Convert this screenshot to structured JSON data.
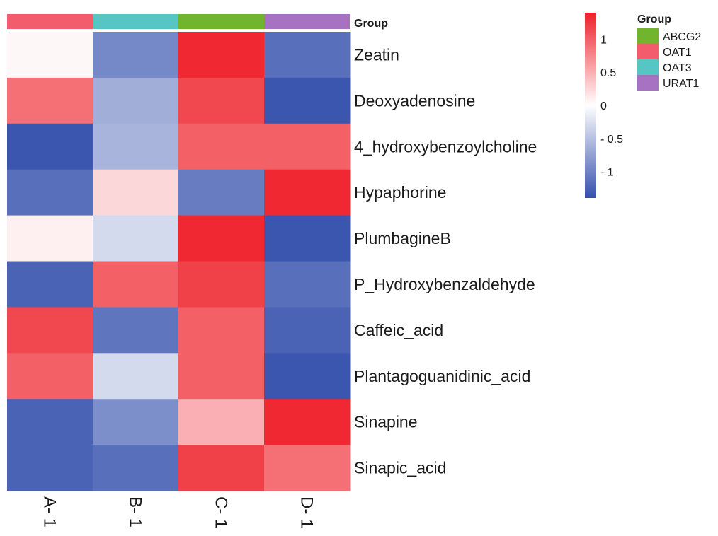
{
  "chart_data": {
    "type": "heatmap",
    "title": "",
    "xlabel": "",
    "ylabel": "",
    "columns": [
      "A- 1",
      "B- 1",
      "C- 1",
      "D- 1"
    ],
    "column_groups": [
      "OAT1",
      "OAT3",
      "ABCG2",
      "URAT1"
    ],
    "rows": [
      "Zeatin",
      "Deoxyadenosine",
      "4_hydroxybenzoylcholine",
      "Hypaphorine",
      "PlumbagineB",
      "P_Hydroxybenzaldehyde",
      "Caffeic_acid",
      "Plantagoguanidinic_acid",
      "Sinapine",
      "Sinapic_acid"
    ],
    "values": [
      [
        0.05,
        -0.95,
        1.35,
        -1.15
      ],
      [
        0.9,
        -0.65,
        1.15,
        -1.35
      ],
      [
        -1.35,
        -0.6,
        1.0,
        1.0
      ],
      [
        -1.15,
        0.25,
        -1.05,
        1.35
      ],
      [
        0.1,
        -0.3,
        1.35,
        -1.35
      ],
      [
        -1.25,
        1.0,
        1.2,
        -1.15
      ],
      [
        1.15,
        -1.1,
        1.0,
        -1.25
      ],
      [
        1.0,
        -0.3,
        1.0,
        -1.35
      ],
      [
        -1.25,
        -0.9,
        0.5,
        1.35
      ],
      [
        -1.25,
        -1.15,
        1.2,
        0.9
      ]
    ],
    "colorscale": {
      "low": "#3450ac",
      "mid": "#ffffff",
      "high": "#ee2029",
      "range": [
        -1.4,
        1.4
      ],
      "ticks": [
        1,
        0.5,
        0,
        -0.5,
        -1
      ],
      "tick_labels": [
        "1",
        "0.5",
        "0",
        "- 0.5",
        "- 1"
      ]
    },
    "annotation": {
      "title": "Group",
      "legend_title": "Group",
      "legend": [
        {
          "name": "ABCG2",
          "color": "#71b42e"
        },
        {
          "name": "OAT1",
          "color": "#f25c6c"
        },
        {
          "name": "OAT3",
          "color": "#55c6c3"
        },
        {
          "name": "URAT1",
          "color": "#a672c1"
        }
      ]
    },
    "legend_position": "top-right",
    "grid": false
  }
}
